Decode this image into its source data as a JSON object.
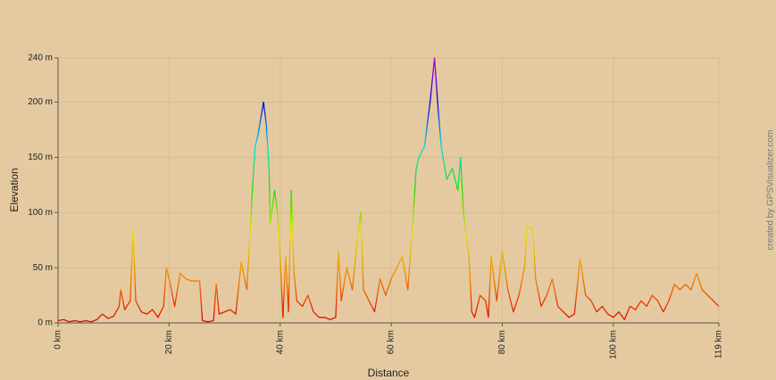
{
  "chart_data": {
    "type": "line",
    "xlabel": "Distance",
    "ylabel": "Elevation",
    "credit": "created by GPSVisualizer.com",
    "x": [
      0,
      1,
      2,
      3,
      4,
      5,
      6,
      7,
      8,
      9,
      10,
      11,
      11.3,
      12,
      13,
      13.5,
      14,
      15,
      16,
      17,
      18,
      19,
      19.5,
      20,
      21,
      22,
      23,
      24,
      25,
      25.5,
      26,
      27,
      28,
      28.5,
      29,
      30,
      31,
      32,
      33,
      34,
      35,
      35.5,
      36,
      37,
      37.5,
      38,
      38.2,
      39,
      39.5,
      40,
      40.5,
      41,
      41.5,
      42,
      42.5,
      43,
      44,
      45,
      46,
      47,
      48,
      49,
      50,
      50.5,
      51,
      52,
      53,
      54,
      54.5,
      55,
      56,
      57,
      58,
      59,
      60,
      61,
      62,
      63,
      64,
      64.5,
      65,
      66,
      67,
      67.8,
      68.5,
      69,
      70,
      71,
      72,
      72.5,
      73,
      74,
      74.5,
      75,
      76,
      77,
      77.5,
      78,
      79,
      80,
      81,
      82,
      83,
      84,
      84.5,
      85.5,
      86,
      87,
      88,
      89,
      90,
      91,
      92,
      93,
      94,
      95,
      96,
      97,
      98,
      99,
      100,
      101,
      102,
      103,
      104,
      105,
      106,
      107,
      108,
      109,
      110,
      111,
      112,
      113,
      114,
      115,
      116,
      117,
      118,
      119
    ],
    "values": [
      2,
      3,
      1,
      2,
      1,
      2,
      1,
      3,
      8,
      4,
      6,
      15,
      30,
      12,
      20,
      85,
      20,
      10,
      8,
      12,
      5,
      15,
      50,
      40,
      15,
      45,
      40,
      38,
      38,
      38,
      2,
      1,
      2,
      35,
      8,
      10,
      12,
      8,
      55,
      30,
      120,
      160,
      170,
      200,
      180,
      140,
      90,
      120,
      100,
      60,
      5,
      60,
      10,
      120,
      45,
      20,
      15,
      25,
      10,
      5,
      5,
      3,
      5,
      65,
      20,
      50,
      30,
      80,
      100,
      30,
      20,
      10,
      40,
      25,
      40,
      50,
      60,
      30,
      100,
      140,
      150,
      160,
      200,
      240,
      190,
      160,
      130,
      140,
      120,
      150,
      100,
      60,
      10,
      5,
      25,
      20,
      5,
      60,
      20,
      65,
      30,
      10,
      25,
      50,
      88,
      85,
      40,
      15,
      25,
      40,
      15,
      10,
      5,
      8,
      58,
      25,
      20,
      10,
      15,
      8,
      5,
      10,
      3,
      15,
      12,
      20,
      15,
      25,
      20,
      10,
      20,
      35,
      30,
      35,
      30,
      45,
      30,
      25,
      20,
      15
    ],
    "colorscale": [
      "#e00000",
      "#f08000",
      "#e8e000",
      "#20e000",
      "#00e0e0",
      "#0000e0",
      "#c000e0"
    ],
    "xlim": [
      0,
      119
    ],
    "xticks": [
      {
        "value": 0,
        "label": "0 km"
      },
      {
        "value": 20,
        "label": "20 km"
      },
      {
        "value": 40,
        "label": "40 km"
      },
      {
        "value": 60,
        "label": "60 km"
      },
      {
        "value": 80,
        "label": "80 km"
      },
      {
        "value": 100,
        "label": "100 km"
      },
      {
        "value": 119,
        "label": "119 km"
      }
    ],
    "ylim": [
      0,
      240
    ],
    "yticks": [
      {
        "value": 0,
        "label": "0 m"
      },
      {
        "value": 50,
        "label": "50 m"
      },
      {
        "value": 100,
        "label": "100 m"
      },
      {
        "value": 150,
        "label": "150 m"
      },
      {
        "value": 200,
        "label": "200 m"
      },
      {
        "value": 240,
        "label": "240 m"
      }
    ],
    "grid": true
  }
}
